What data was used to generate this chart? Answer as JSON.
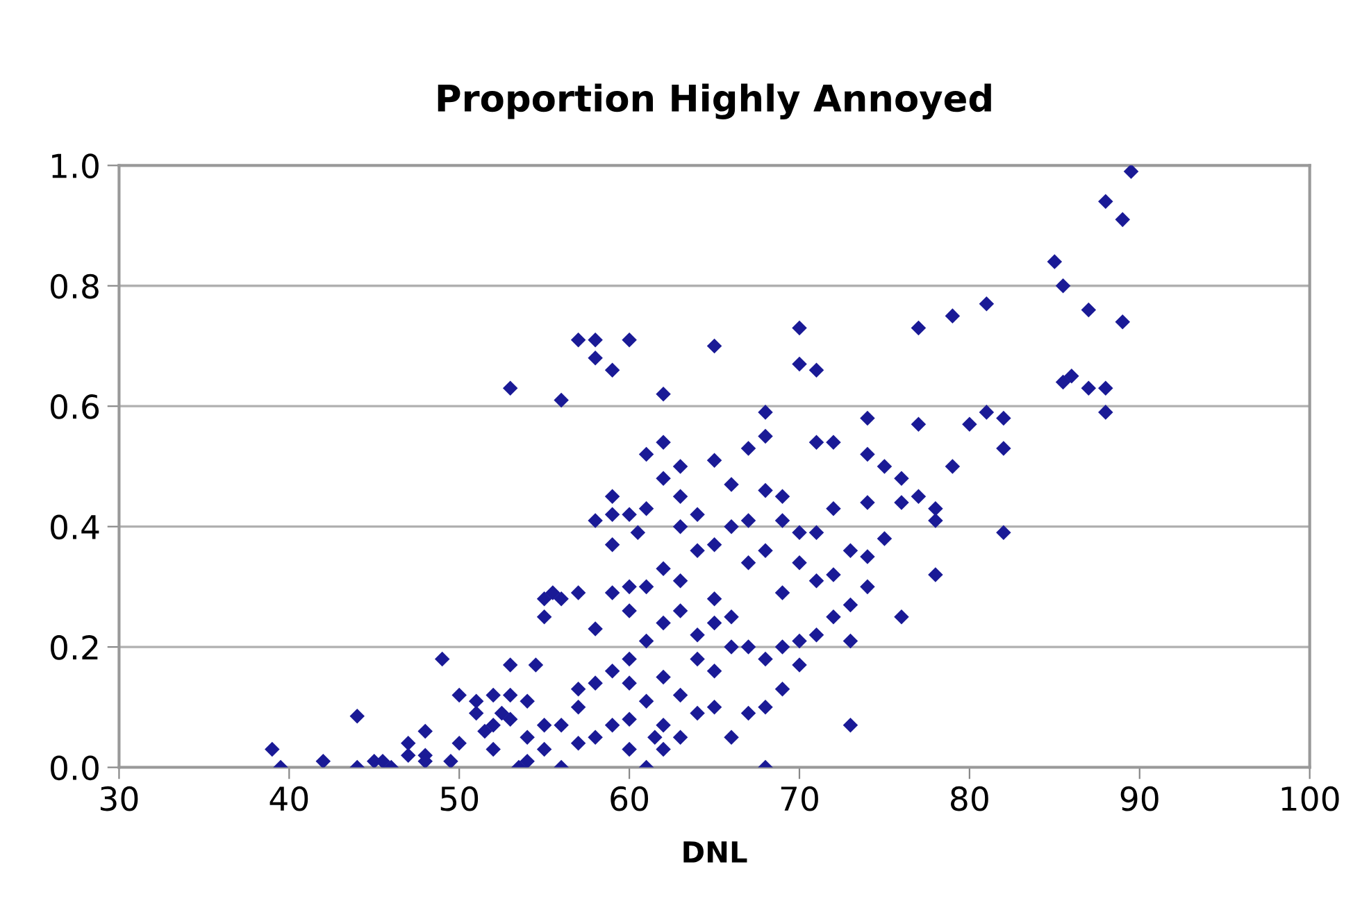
{
  "chart_data": {
    "type": "scatter",
    "title": "Proportion Highly Annoyed",
    "xlabel": "DNL",
    "xlim": [
      30,
      100
    ],
    "xticks": [
      30,
      40,
      50,
      60,
      70,
      80,
      90,
      100
    ],
    "ylim": [
      0,
      1
    ],
    "yticks": [
      {
        "value": 0,
        "label": "0.0"
      },
      0.2,
      0.4,
      0.6,
      0.8,
      {
        "value": 1,
        "label": "1.0"
      }
    ],
    "grid": "y",
    "marker": "diamond",
    "series": [
      {
        "color": "#1a1a96",
        "x": [
          39,
          39.5,
          42,
          44,
          44,
          45,
          45.5,
          46,
          47,
          47,
          48,
          48,
          48,
          49,
          49.5,
          50,
          50,
          51,
          51,
          51.5,
          52,
          52,
          52,
          52.5,
          53,
          53,
          53,
          53,
          53.5,
          54,
          54,
          54,
          54.5,
          55,
          55,
          55,
          55.5,
          55,
          56,
          56,
          56,
          56,
          57,
          57,
          57,
          57,
          57,
          58,
          58,
          58,
          58,
          58,
          58,
          59,
          59,
          59,
          59,
          59,
          59,
          59,
          60,
          60,
          60,
          60,
          60,
          60,
          60,
          60,
          60.5,
          61,
          61,
          61,
          61,
          61,
          61,
          61.5,
          62,
          62,
          62,
          62,
          62,
          62,
          62,
          62,
          63,
          63,
          63,
          63,
          63,
          63,
          63,
          64,
          64,
          64,
          64,
          64,
          65,
          65,
          65,
          65,
          65,
          65,
          65,
          66,
          66,
          66,
          66,
          66,
          67,
          67,
          67,
          67,
          67,
          68,
          68,
          68,
          68,
          68,
          68,
          68,
          69,
          69,
          69,
          69,
          69,
          70,
          70,
          70,
          70,
          70,
          70,
          71,
          71,
          71,
          71,
          71,
          72,
          72,
          72,
          72,
          73,
          73,
          73,
          73,
          74,
          74,
          74,
          74,
          74,
          75,
          75,
          76,
          76,
          76,
          77,
          77,
          77,
          78,
          78,
          78,
          79,
          79,
          80,
          81,
          81,
          82,
          82,
          82,
          85,
          85.5,
          85.5,
          86,
          87,
          87,
          88,
          88,
          88,
          89,
          89,
          89.5
        ],
        "values": [
          0.03,
          0.0,
          0.01,
          0.085,
          0.0,
          0.01,
          0.01,
          0.0,
          0.04,
          0.02,
          0.06,
          0.02,
          0.01,
          0.18,
          0.01,
          0.12,
          0.04,
          0.11,
          0.09,
          0.06,
          0.07,
          0.03,
          0.12,
          0.09,
          0.63,
          0.17,
          0.12,
          0.08,
          0.0,
          0.01,
          0.05,
          0.11,
          0.17,
          0.03,
          0.07,
          0.25,
          0.29,
          0.28,
          0.61,
          0.07,
          0.28,
          0.0,
          0.29,
          0.13,
          0.1,
          0.04,
          0.71,
          0.71,
          0.68,
          0.41,
          0.23,
          0.14,
          0.05,
          0.66,
          0.45,
          0.42,
          0.37,
          0.29,
          0.16,
          0.07,
          0.71,
          0.42,
          0.3,
          0.26,
          0.18,
          0.14,
          0.08,
          0.03,
          0.39,
          0.52,
          0.43,
          0.3,
          0.21,
          0.11,
          0.0,
          0.05,
          0.62,
          0.54,
          0.48,
          0.33,
          0.24,
          0.15,
          0.07,
          0.03,
          0.5,
          0.45,
          0.4,
          0.31,
          0.26,
          0.12,
          0.05,
          0.42,
          0.36,
          0.22,
          0.18,
          0.09,
          0.7,
          0.51,
          0.37,
          0.28,
          0.24,
          0.16,
          0.1,
          0.47,
          0.4,
          0.25,
          0.2,
          0.05,
          0.53,
          0.41,
          0.34,
          0.2,
          0.09,
          0.59,
          0.55,
          0.46,
          0.36,
          0.18,
          0.1,
          0.0,
          0.45,
          0.41,
          0.29,
          0.2,
          0.13,
          0.73,
          0.67,
          0.39,
          0.34,
          0.21,
          0.17,
          0.66,
          0.54,
          0.39,
          0.31,
          0.22,
          0.54,
          0.43,
          0.32,
          0.25,
          0.36,
          0.27,
          0.21,
          0.07,
          0.58,
          0.52,
          0.44,
          0.35,
          0.3,
          0.5,
          0.38,
          0.48,
          0.44,
          0.25,
          0.73,
          0.57,
          0.45,
          0.43,
          0.41,
          0.32,
          0.75,
          0.5,
          0.57,
          0.77,
          0.59,
          0.58,
          0.53,
          0.39,
          0.84,
          0.8,
          0.64,
          0.65,
          0.76,
          0.63,
          0.94,
          0.63,
          0.59,
          0.91,
          0.74,
          0.99
        ]
      }
    ]
  }
}
